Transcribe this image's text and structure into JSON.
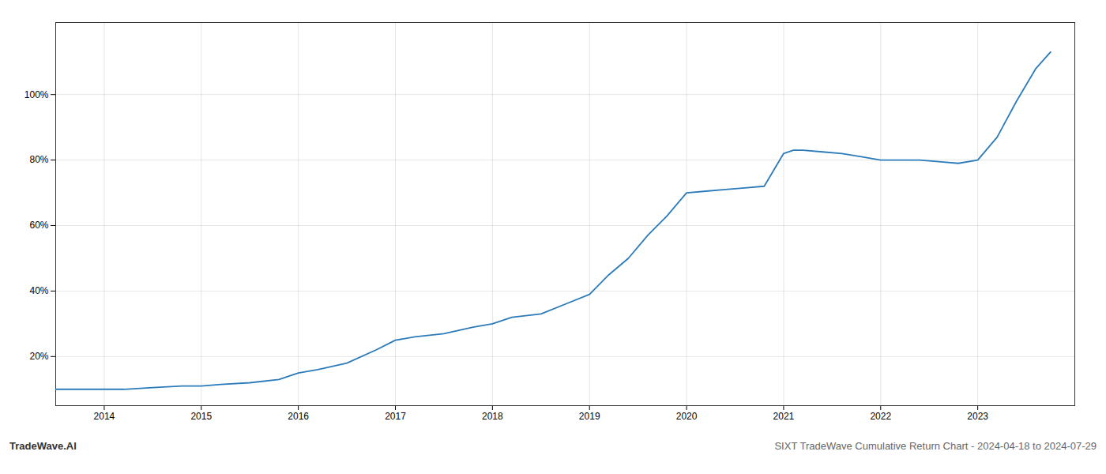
{
  "chart_data": {
    "type": "line",
    "title": "SIXT TradeWave Cumulative Return Chart - 2024-04-18 to 2024-07-29",
    "annotations": [
      "TradeWave.AI"
    ],
    "x": [
      2013.5,
      2013.8,
      2014.0,
      2014.2,
      2014.5,
      2014.8,
      2015.0,
      2015.2,
      2015.5,
      2015.8,
      2016.0,
      2016.2,
      2016.5,
      2016.8,
      2017.0,
      2017.2,
      2017.5,
      2017.8,
      2018.0,
      2018.2,
      2018.5,
      2018.75,
      2019.0,
      2019.1,
      2019.2,
      2019.4,
      2019.6,
      2019.8,
      2020.0,
      2020.2,
      2020.4,
      2020.6,
      2020.8,
      2021.0,
      2021.1,
      2021.2,
      2021.4,
      2021.6,
      2021.8,
      2022.0,
      2022.2,
      2022.4,
      2022.6,
      2022.8,
      2023.0,
      2023.2,
      2023.4,
      2023.6,
      2023.75
    ],
    "values": [
      10,
      10,
      10,
      10,
      10.5,
      11,
      11,
      11.5,
      12,
      13,
      15,
      16,
      18,
      22,
      25,
      26,
      27,
      29,
      30,
      32,
      33,
      36,
      39,
      42,
      45,
      50,
      57,
      63,
      70,
      70.5,
      71,
      71.5,
      72,
      82,
      83,
      83,
      82.5,
      82,
      81,
      80,
      80,
      80,
      79.5,
      79,
      80,
      87,
      98,
      108,
      113
    ],
    "color": "#2b7bba",
    "xlim": [
      2013.5,
      2024.0
    ],
    "xticks": [
      2014,
      2015,
      2016,
      2017,
      2018,
      2019,
      2020,
      2021,
      2022,
      2023
    ],
    "ylim": [
      5,
      122
    ],
    "yticks": [
      {
        "value": 20,
        "label": "20%"
      },
      {
        "value": 40,
        "label": "40%"
      },
      {
        "value": 60,
        "label": "60%"
      },
      {
        "value": 80,
        "label": "80%"
      },
      {
        "value": 100,
        "label": "100%"
      }
    ],
    "grid": true
  }
}
